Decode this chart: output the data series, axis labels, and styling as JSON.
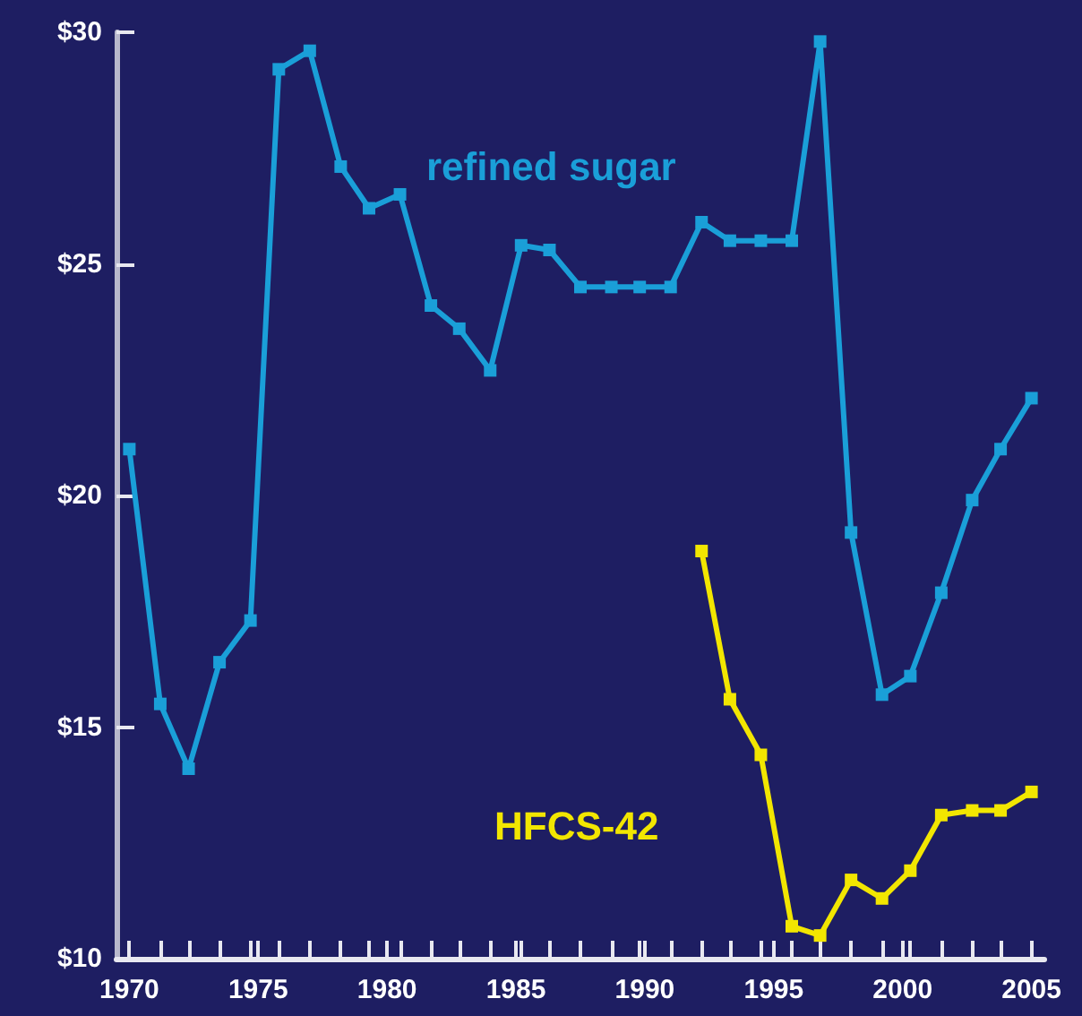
{
  "chart_data": {
    "type": "line",
    "marker": "square",
    "grid": false,
    "legend": false,
    "xlim": [
      1969.5,
      2005.5
    ],
    "xticks": [
      1970,
      1975,
      1980,
      1985,
      1990,
      1995,
      2000,
      2005,
      {
        "value": 1971.2,
        "label": null
      },
      {
        "value": 1972.3,
        "label": null
      },
      {
        "value": 1973.5,
        "label": null
      },
      {
        "value": 1974.7,
        "label": null
      },
      {
        "value": 1975.8,
        "label": null
      },
      {
        "value": 1977,
        "label": null
      },
      {
        "value": 1978.2,
        "label": null
      },
      {
        "value": 1979.3,
        "label": null
      },
      {
        "value": 1980.5,
        "label": null
      },
      {
        "value": 1981.7,
        "label": null
      },
      {
        "value": 1982.8,
        "label": null
      },
      {
        "value": 1984,
        "label": null
      },
      {
        "value": 1985.2,
        "label": null
      },
      {
        "value": 1986.3,
        "label": null
      },
      {
        "value": 1987.5,
        "label": null
      },
      {
        "value": 1988.7,
        "label": null
      },
      {
        "value": 1989.8,
        "label": null
      },
      {
        "value": 1991,
        "label": null
      },
      {
        "value": 1992.2,
        "label": null
      },
      {
        "value": 1993.3,
        "label": null
      },
      {
        "value": 1994.5,
        "label": null
      },
      {
        "value": 1995.7,
        "label": null
      },
      {
        "value": 1996.8,
        "label": null
      },
      {
        "value": 1998,
        "label": null
      },
      {
        "value": 1999.2,
        "label": null
      },
      {
        "value": 2000.3,
        "label": null
      },
      {
        "value": 2001.5,
        "label": null
      },
      {
        "value": 2002.7,
        "label": null
      },
      {
        "value": 2003.8,
        "label": null
      }
    ],
    "ylim": [
      10,
      30
    ],
    "yticks": [
      {
        "value": 10,
        "label": "$10"
      },
      {
        "value": 15,
        "label": "$15"
      },
      {
        "value": 20,
        "label": "$20"
      },
      {
        "value": 25,
        "label": "$25"
      },
      {
        "value": 30,
        "label": "$30"
      }
    ],
    "x": [
      1970,
      1971.2,
      1972.3,
      1973.5,
      1974.7,
      1975.8,
      1977,
      1978.2,
      1979.3,
      1980.5,
      1981.7,
      1982.8,
      1984,
      1985.2,
      1986.3,
      1987.5,
      1988.7,
      1989.8,
      1991,
      1992.2,
      1993.3,
      1994.5,
      1995.7,
      1996.8,
      1998,
      1999.2,
      2000.3,
      2001.5,
      2002.7,
      2003.8,
      2005
    ],
    "series": [
      {
        "name": "refined sugar",
        "color": "#1a9fd8",
        "values": [
          21.0,
          15.5,
          14.1,
          16.4,
          17.3,
          29.2,
          29.6,
          27.1,
          26.2,
          26.5,
          24.1,
          23.6,
          22.7,
          25.4,
          25.3,
          24.5,
          24.5,
          24.5,
          24.5,
          25.9,
          25.5,
          25.5,
          25.5,
          29.8,
          19.2,
          15.7,
          16.1,
          17.9,
          19.9,
          21.0,
          22.1
        ]
      },
      {
        "name": "HFCS-42",
        "color": "#f2e600",
        "values": [
          null,
          null,
          null,
          null,
          null,
          null,
          null,
          null,
          null,
          null,
          null,
          null,
          null,
          null,
          null,
          null,
          null,
          null,
          null,
          18.8,
          15.6,
          14.4,
          10.7,
          10.5,
          11.7,
          11.3,
          11.9,
          13.1,
          13.2,
          13.2,
          13.6
        ]
      }
    ]
  }
}
